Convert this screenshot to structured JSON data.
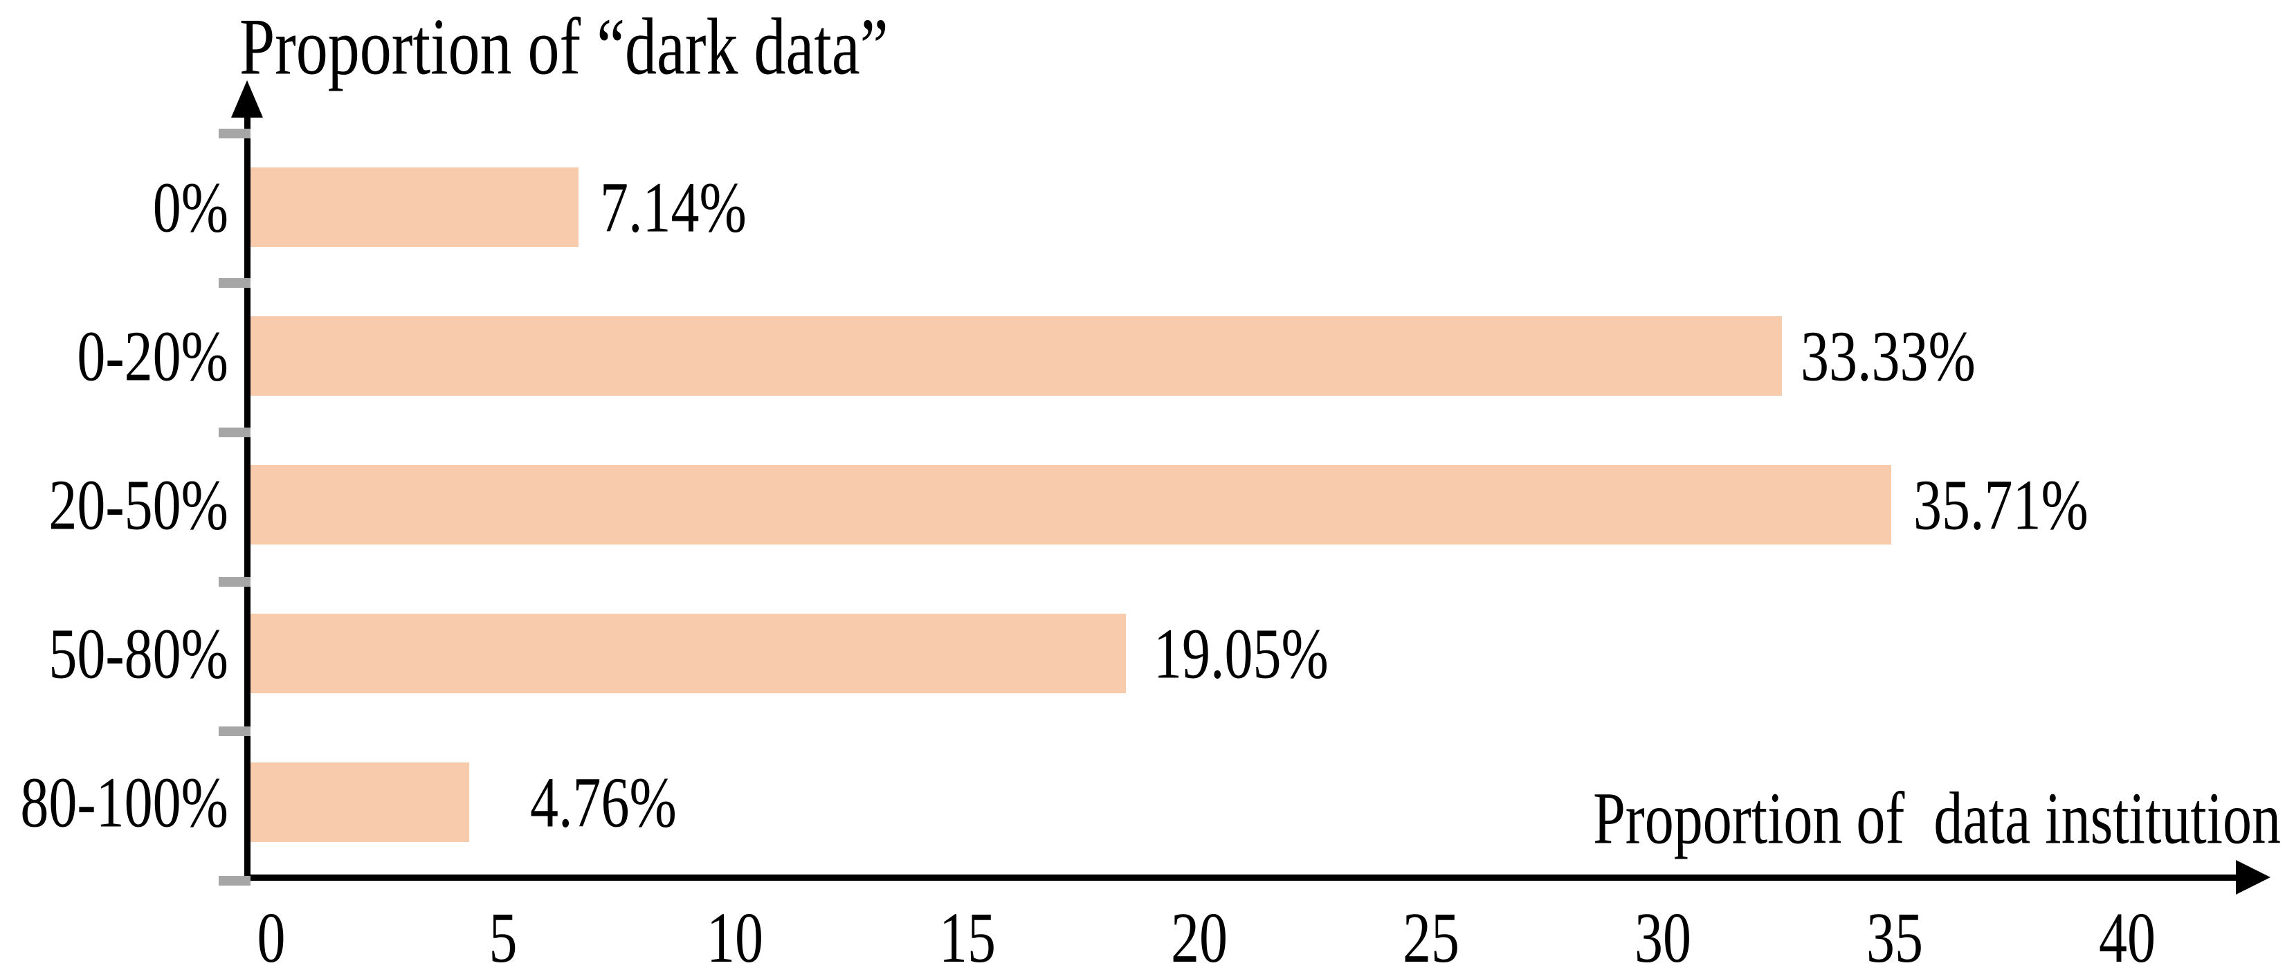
{
  "chart_data": {
    "type": "bar",
    "orientation": "horizontal",
    "title": "Proportion of “dark data”",
    "xlabel": "Proportion of  data institution",
    "categories": [
      "0%",
      "0-20%",
      "20-50%",
      "50-80%",
      "80-100%"
    ],
    "values": [
      7.14,
      33.33,
      35.71,
      19.05,
      4.76
    ],
    "value_labels": [
      "7.14%",
      "33.33%",
      "35.71%",
      "19.05%",
      "4.76%"
    ],
    "x_ticks": [
      "0",
      "5",
      "10",
      "15",
      "20",
      "25",
      "30",
      "35",
      "40"
    ],
    "xlim": [
      0,
      40
    ],
    "grid": false,
    "legend": "none",
    "bar_color": "#F8CBAD",
    "y_tick_color": "#A6A6A6",
    "axis_color": "#000000"
  }
}
